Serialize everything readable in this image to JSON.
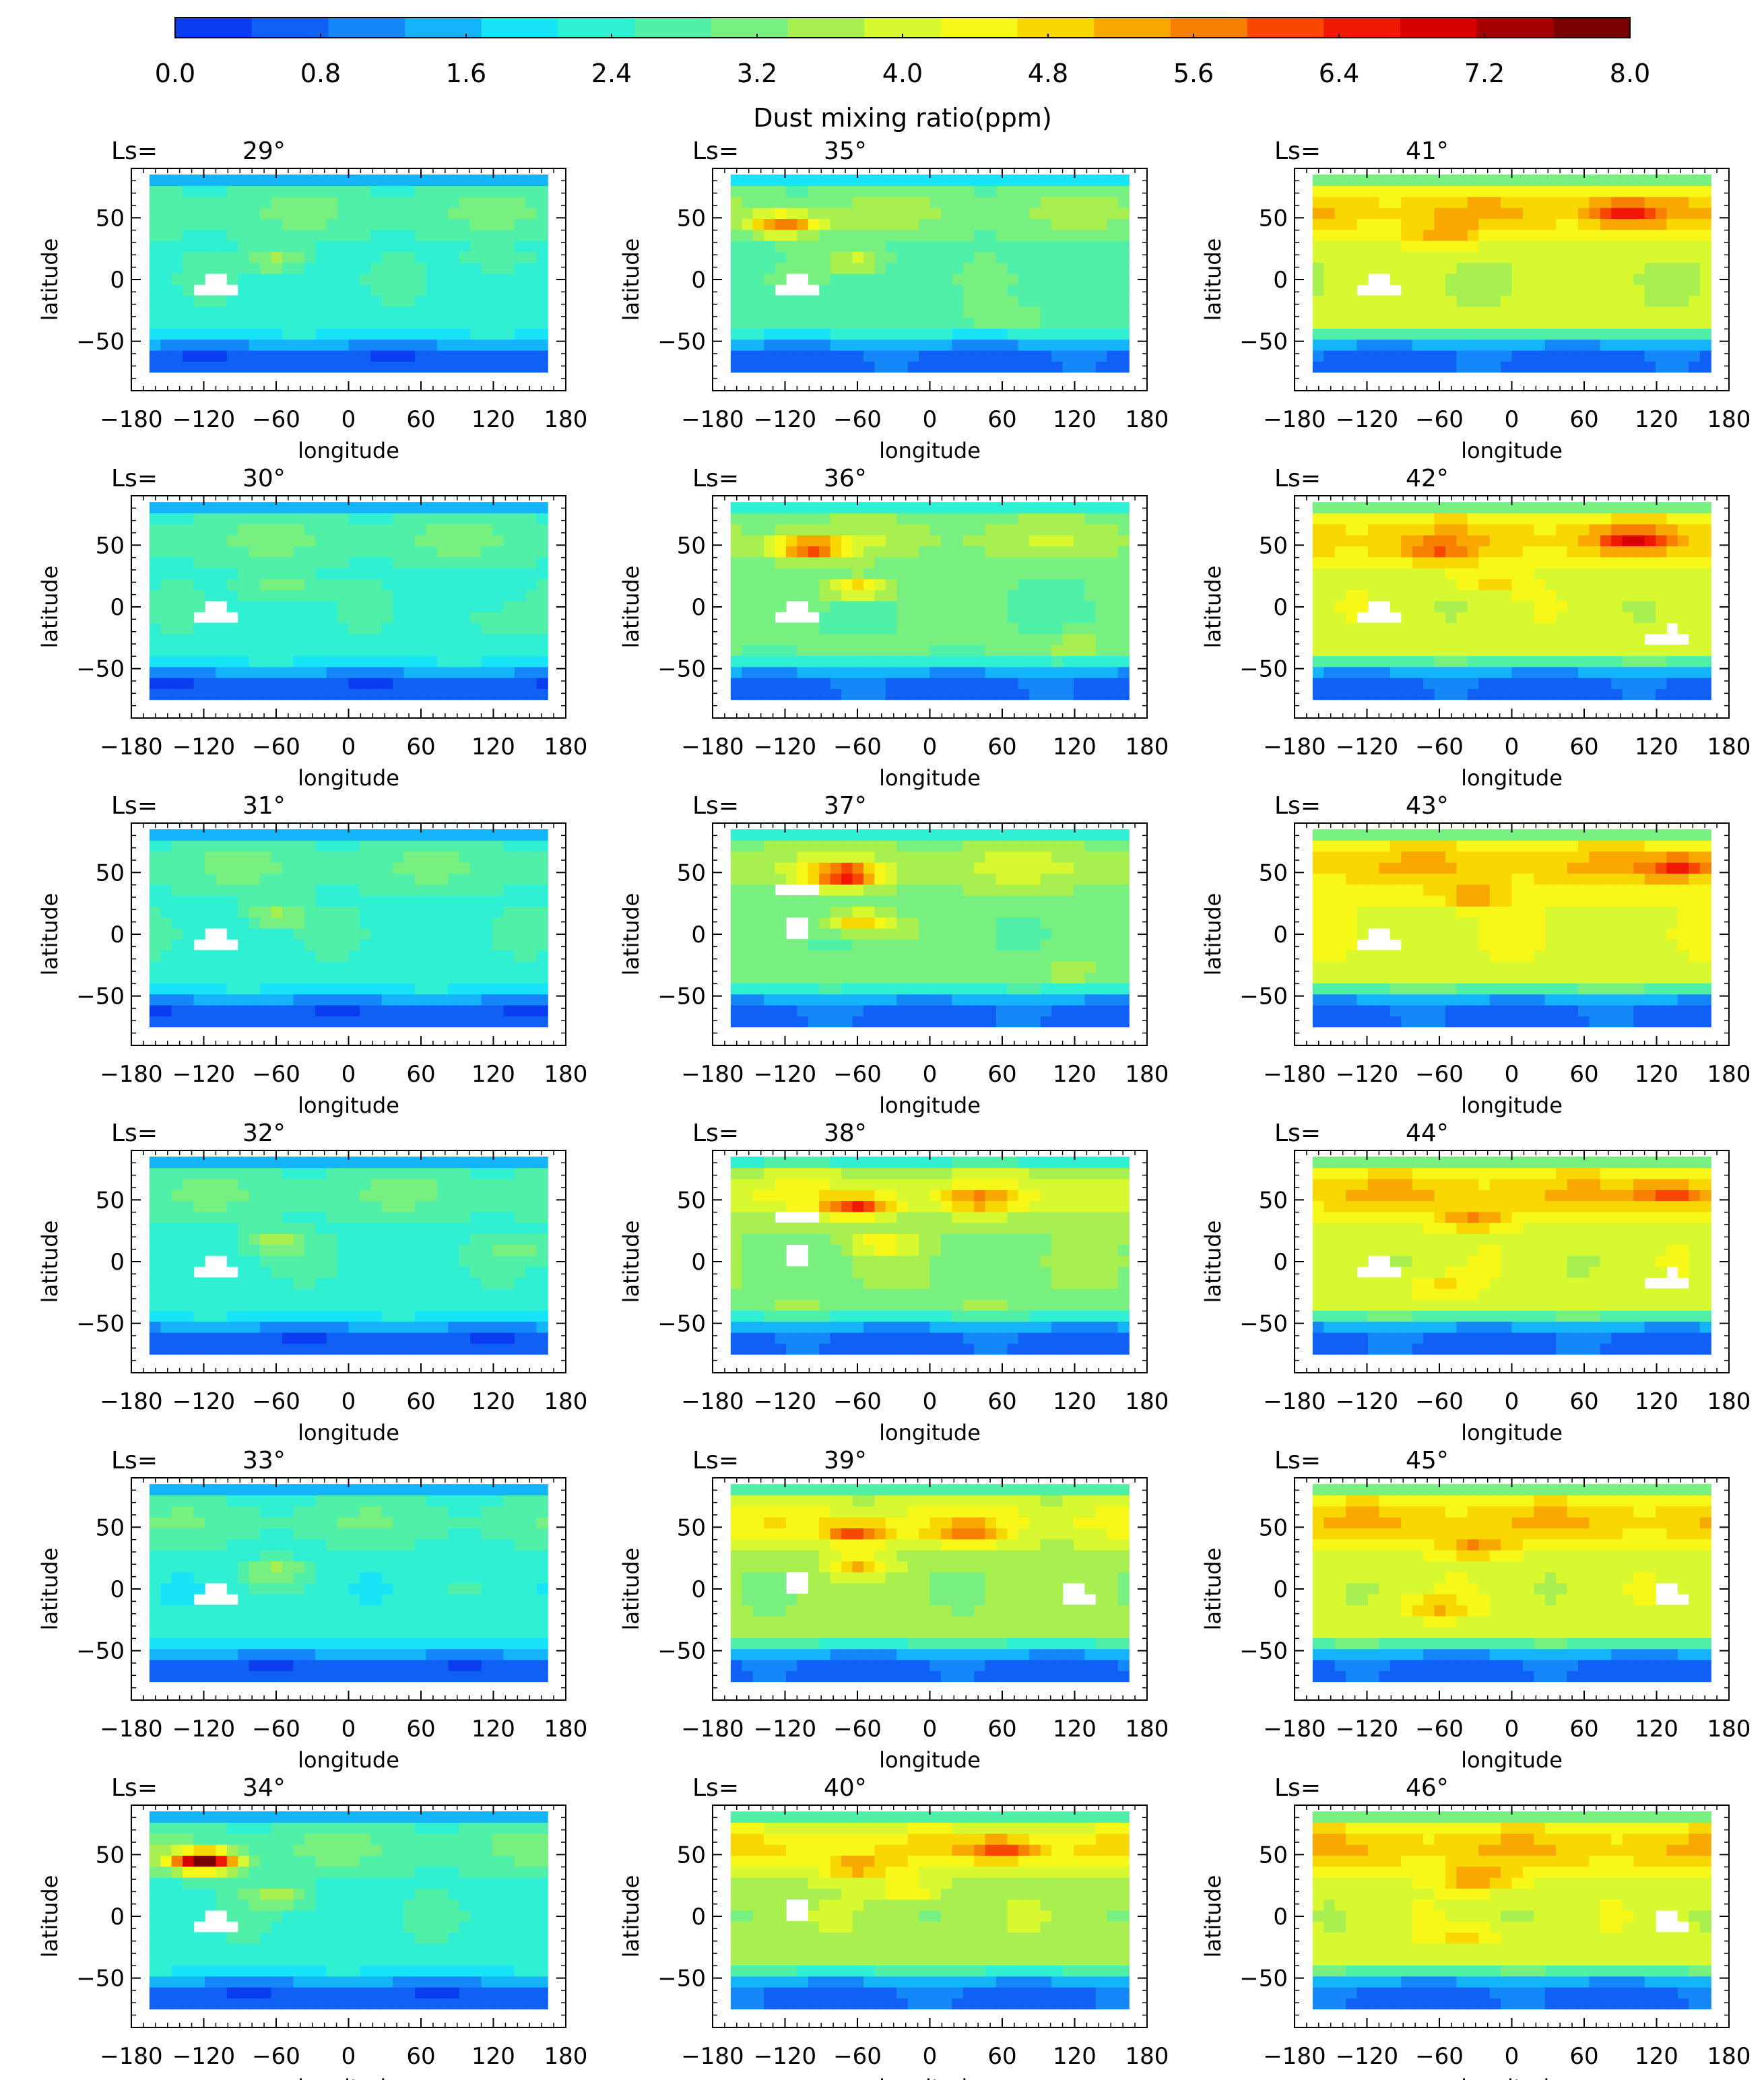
{
  "colorbar": {
    "label": "Dust mixing ratio(ppm)",
    "range": [
      0,
      8
    ],
    "tick_labels": [
      "0.0",
      "0.8",
      "1.6",
      "2.4",
      "3.2",
      "4.0",
      "4.8",
      "5.6",
      "6.4",
      "7.2",
      "8.0"
    ],
    "colors": [
      "#0a3cf0",
      "#1060f5",
      "#1488f8",
      "#14b4fa",
      "#18e4f8",
      "#30f0d4",
      "#50f0a8",
      "#78f080",
      "#a8f050",
      "#d8f830",
      "#f8f818",
      "#f8d800",
      "#f8a800",
      "#f88000",
      "#f84800",
      "#f01800",
      "#d80000",
      "#a80000",
      "#780000"
    ]
  },
  "panel_common": {
    "ls_prefix": "Ls=",
    "xlabel": "longitude",
    "ylabel": "latitude",
    "x_tick_labels": [
      "−180",
      "−120",
      "−60",
      "0",
      "60",
      "120",
      "180"
    ],
    "y_tick_labels": [
      "50",
      "0",
      "−50"
    ]
  },
  "chart_data": {
    "type": "heatmap",
    "x_range": [
      -180,
      180
    ],
    "y_range": [
      -90,
      90
    ],
    "x_ticks": [
      -180,
      -120,
      -60,
      0,
      60,
      120,
      180
    ],
    "y_ticks": [
      50,
      0,
      -50
    ],
    "data_extent": {
      "lon": [
        -165,
        165
      ],
      "lat": [
        -75,
        85
      ]
    },
    "panels": [
      {
        "ls": "29°",
        "base": 2.4,
        "north": 2.9,
        "south": 0.9,
        "features": [
          {
            "lon": -60,
            "lat": 15,
            "v": 3.6
          },
          {
            "lon": 120,
            "lat": 15,
            "v": 3.0
          }
        ]
      },
      {
        "ls": "30°",
        "base": 2.4,
        "north": 2.9,
        "south": 0.9,
        "features": [
          {
            "lon": -60,
            "lat": 15,
            "v": 3.5
          },
          {
            "lon": 120,
            "lat": -10,
            "v": 3.0
          }
        ]
      },
      {
        "ls": "31°",
        "base": 2.4,
        "north": 2.9,
        "south": 0.9,
        "features": [
          {
            "lon": -60,
            "lat": 15,
            "v": 3.6
          }
        ]
      },
      {
        "ls": "32°",
        "base": 2.4,
        "north": 2.9,
        "south": 0.9,
        "features": [
          {
            "lon": -60,
            "lat": 15,
            "v": 3.6
          },
          {
            "lon": 140,
            "lat": 10,
            "v": 3.1
          }
        ]
      },
      {
        "ls": "33°",
        "base": 2.3,
        "north": 2.8,
        "south": 0.9,
        "features": [
          {
            "lon": -60,
            "lat": 15,
            "v": 3.4
          }
        ]
      },
      {
        "ls": "34°",
        "base": 2.4,
        "north": 2.9,
        "south": 0.9,
        "features": [
          {
            "lon": -120,
            "lat": 45,
            "v": 7.6
          },
          {
            "lon": -60,
            "lat": 15,
            "v": 3.6
          }
        ]
      },
      {
        "ls": "35°",
        "base": 2.8,
        "north": 3.4,
        "south": 1.0,
        "features": [
          {
            "lon": -120,
            "lat": 45,
            "v": 5.6
          },
          {
            "lon": -60,
            "lat": 15,
            "v": 4.0
          },
          {
            "lon": 60,
            "lat": -30,
            "v": 3.4
          }
        ]
      },
      {
        "ls": "36°",
        "base": 3.0,
        "north": 3.6,
        "south": 1.0,
        "features": [
          {
            "lon": -100,
            "lat": 48,
            "v": 5.8
          },
          {
            "lon": -60,
            "lat": 15,
            "v": 5.0
          },
          {
            "lon": 120,
            "lat": -30,
            "v": 3.6
          }
        ]
      },
      {
        "ls": "37°",
        "base": 3.1,
        "north": 3.8,
        "south": 1.0,
        "features": [
          {
            "lon": -70,
            "lat": 48,
            "v": 6.0
          },
          {
            "lon": -60,
            "lat": 10,
            "v": 5.0
          },
          {
            "lon": 120,
            "lat": -30,
            "v": 3.6
          }
        ]
      },
      {
        "ls": "38°",
        "base": 3.3,
        "north": 4.2,
        "south": 1.0,
        "features": [
          {
            "lon": -60,
            "lat": 45,
            "v": 5.7
          },
          {
            "lon": 40,
            "lat": 50,
            "v": 4.6
          },
          {
            "lon": -40,
            "lat": 15,
            "v": 4.5
          }
        ]
      },
      {
        "ls": "39°",
        "base": 3.5,
        "north": 4.4,
        "south": 1.0,
        "features": [
          {
            "lon": -60,
            "lat": 45,
            "v": 5.6
          },
          {
            "lon": 30,
            "lat": 45,
            "v": 5.0
          },
          {
            "lon": -60,
            "lat": 20,
            "v": 5.0
          }
        ]
      },
      {
        "ls": "40°",
        "base": 3.6,
        "north": 4.6,
        "south": 1.0,
        "features": [
          {
            "lon": 60,
            "lat": 55,
            "v": 5.4
          },
          {
            "lon": -60,
            "lat": 40,
            "v": 5.0
          },
          {
            "lon": -20,
            "lat": 20,
            "v": 4.6
          }
        ]
      },
      {
        "ls": "41°",
        "base": 3.9,
        "north": 5.0,
        "south": 1.0,
        "features": [
          {
            "lon": 90,
            "lat": 55,
            "v": 5.6
          },
          {
            "lon": -60,
            "lat": 35,
            "v": 4.9
          }
        ]
      },
      {
        "ls": "42°",
        "base": 4.0,
        "north": 5.0,
        "south": 1.0,
        "features": [
          {
            "lon": 100,
            "lat": 55,
            "v": 5.6
          },
          {
            "lon": -60,
            "lat": 45,
            "v": 5.0
          },
          {
            "lon": -20,
            "lat": 20,
            "v": 4.8
          }
        ]
      },
      {
        "ls": "43°",
        "base": 4.1,
        "north": 5.0,
        "south": 1.0,
        "features": [
          {
            "lon": 140,
            "lat": 55,
            "v": 5.8
          },
          {
            "lon": -30,
            "lat": 30,
            "v": 5.2
          }
        ]
      },
      {
        "ls": "44°",
        "base": 4.0,
        "north": 5.0,
        "south": 1.0,
        "features": [
          {
            "lon": 130,
            "lat": 55,
            "v": 5.4
          },
          {
            "lon": -30,
            "lat": 35,
            "v": 5.2
          },
          {
            "lon": -60,
            "lat": -20,
            "v": 4.8
          }
        ]
      },
      {
        "ls": "45°",
        "base": 4.0,
        "north": 5.0,
        "south": 1.0,
        "features": [
          {
            "lon": -30,
            "lat": 35,
            "v": 5.2
          },
          {
            "lon": -60,
            "lat": -15,
            "v": 5.0
          }
        ]
      },
      {
        "ls": "46°",
        "base": 4.0,
        "north": 5.0,
        "south": 1.0,
        "features": [
          {
            "lon": -30,
            "lat": 30,
            "v": 5.4
          },
          {
            "lon": -40,
            "lat": -15,
            "v": 4.8
          }
        ]
      }
    ],
    "missing_regions": [
      [
        {
          "lon": -110,
          "lat": -5
        }
      ],
      [
        {
          "lon": -110,
          "lat": -5
        }
      ],
      [
        {
          "lon": -110,
          "lat": -5
        }
      ],
      [
        {
          "lon": -110,
          "lat": -5
        }
      ],
      [
        {
          "lon": -110,
          "lat": -5
        }
      ],
      [
        {
          "lon": -110,
          "lat": -5
        }
      ],
      [
        {
          "lon": -110,
          "lat": -5
        }
      ],
      [
        {
          "lon": -110,
          "lat": -5
        }
      ],
      [
        {
          "lon": -110,
          "lat": 35
        },
        {
          "lon": -110,
          "lat": 5
        }
      ],
      [
        {
          "lon": -110,
          "lat": 35
        },
        {
          "lon": -110,
          "lat": 5
        }
      ],
      [
        {
          "lon": -110,
          "lat": 5
        },
        {
          "lon": 120,
          "lat": -5
        }
      ],
      [
        {
          "lon": -110,
          "lat": 5
        }
      ],
      [
        {
          "lon": -110,
          "lat": -5
        }
      ],
      [
        {
          "lon": -110,
          "lat": -5
        },
        {
          "lon": 130,
          "lat": -25
        }
      ],
      [
        {
          "lon": -110,
          "lat": -5
        }
      ],
      [
        {
          "lon": -110,
          "lat": -5
        },
        {
          "lon": 130,
          "lat": -15
        }
      ],
      [
        {
          "lon": 130,
          "lat": -5
        }
      ],
      [
        {
          "lon": 130,
          "lat": -5
        }
      ]
    ]
  }
}
